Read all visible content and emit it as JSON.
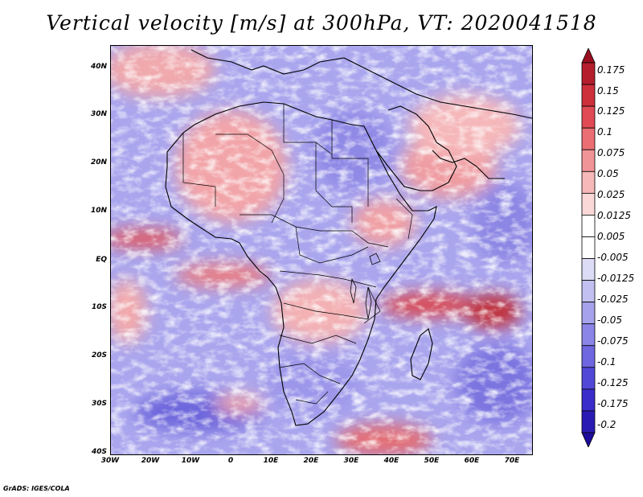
{
  "title": "Vertical velocity [m/s] at 300hPa, VT: 2020041518",
  "credit": "GrADS: IGES/COLA",
  "map": {
    "projection": "latlon",
    "lon_range": [
      -30,
      75
    ],
    "lat_range": [
      -40,
      45
    ],
    "lat_labels": [
      "40N",
      "30N",
      "20N",
      "10N",
      "EQ",
      "10S",
      "20S",
      "30S",
      "40S"
    ],
    "lon_labels": [
      "30W",
      "20W",
      "10W",
      "0",
      "10E",
      "20E",
      "30E",
      "40E",
      "50E",
      "60E",
      "70E"
    ],
    "field_description": "vertical velocity shaded, red = positive, blue = negative",
    "positive_color": "#c8102e",
    "negative_color": "#2d1bd6"
  },
  "colorbar": {
    "levels": [
      "0.175",
      "0.15",
      "0.125",
      "0.1",
      "0.075",
      "0.05",
      "0.025",
      "0.0125",
      "0.005",
      "-0.005",
      "-0.0125",
      "-0.025",
      "-0.05",
      "-0.075",
      "-0.1",
      "-0.125",
      "-0.175",
      "-0.2"
    ],
    "colors": [
      "#9a1020",
      "#b51e2c",
      "#cd2f3b",
      "#e04a55",
      "#ea6e74",
      "#f19497",
      "#f6b8b9",
      "#fad8d8",
      "#ffffff",
      "#ffffff",
      "#dcdcf6",
      "#c2c0f1",
      "#a6a2ec",
      "#8a85e6",
      "#6e67e0",
      "#5148d8",
      "#3a2ccb",
      "#2a1ab4",
      "#1c0c9a"
    ]
  }
}
